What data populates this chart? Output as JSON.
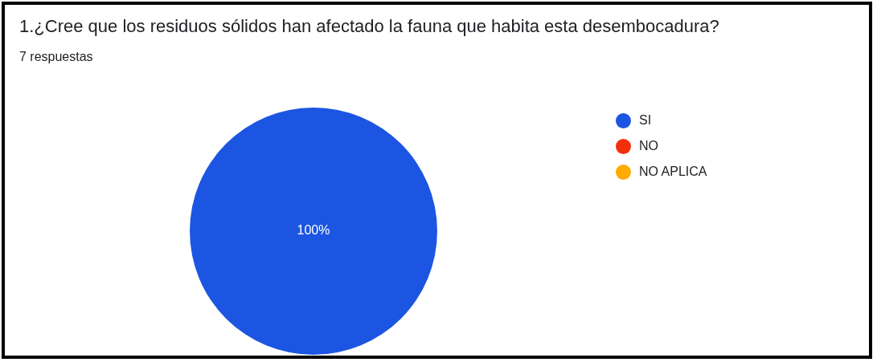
{
  "chart_data": {
    "type": "pie",
    "title": "1.¿Cree que los residuos sólidos han afectado la fauna que habita esta desembocadura?",
    "subtitle": "7 respuestas",
    "categories": [
      "SI",
      "NO",
      "NO APLICA"
    ],
    "values": [
      100,
      0,
      0
    ],
    "value_labels": [
      "100%",
      null,
      null
    ],
    "colors": [
      "#1b55e2",
      "#f4300c",
      "#ffab00"
    ],
    "legend": "top right"
  }
}
